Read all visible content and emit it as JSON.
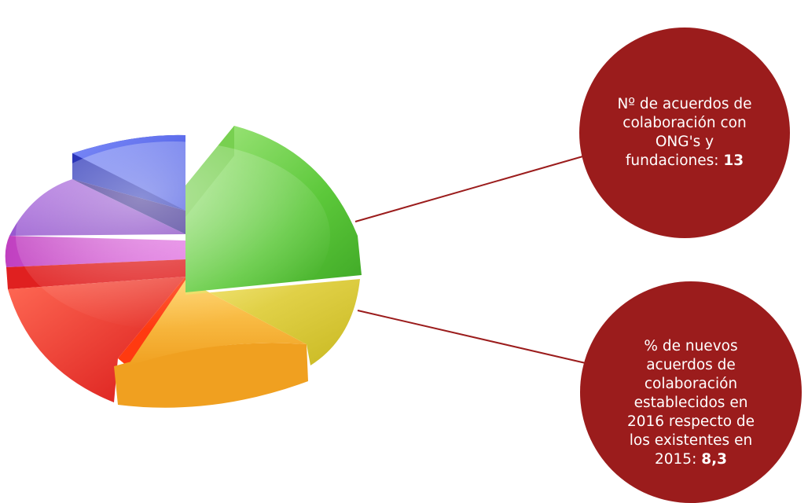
{
  "colors": {
    "circle_fill": "#9b1c1c",
    "connector": "#9b1c1c",
    "text": "#ffffff"
  },
  "pie_colors": [
    "green",
    "yellow",
    "orange",
    "red",
    "magenta",
    "purple",
    "blue"
  ],
  "callouts": [
    {
      "text": "Nº de acuerdos de colaboración con ONG's y fundaciones: ",
      "value": "13"
    },
    {
      "text": "% de nuevos acuerdos de colaboración establecidos en 2016 respecto de los existentes en 2015: ",
      "value": "8,3"
    }
  ]
}
